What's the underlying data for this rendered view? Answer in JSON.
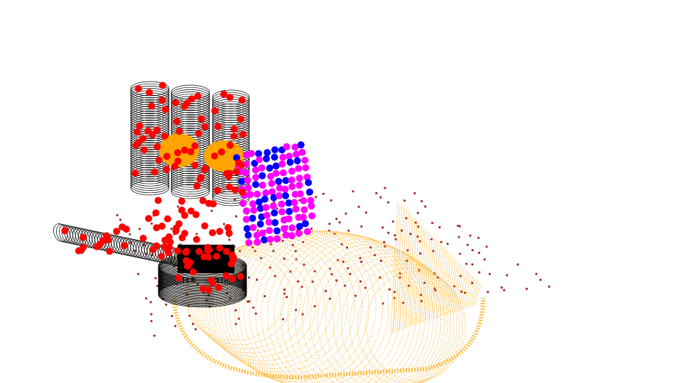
{
  "scene": {
    "background": "#ffffff",
    "colors": {
      "hand_mesh": "#000000",
      "hand_keypoints": "#ff0000",
      "object_mesh": "#ffa500",
      "contact_points": "#ff00ff",
      "contact_points_secondary": "#0000ff",
      "scene_points": "#a52a2a",
      "fingertip_patch": "#ffa500"
    }
  }
}
